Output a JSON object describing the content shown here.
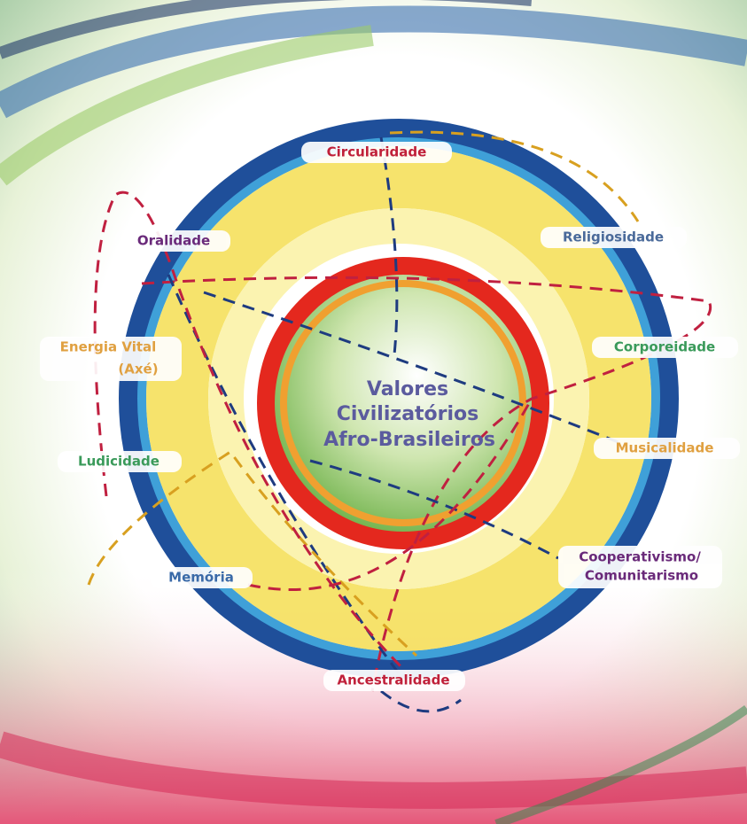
{
  "center": {
    "lines": [
      "Valores",
      "Civilizatórios",
      "Afro-Brasileiros"
    ]
  },
  "nodes": [
    {
      "lines": [
        "Circularidade"
      ]
    },
    {
      "lines": [
        "Religiosidade"
      ]
    },
    {
      "lines": [
        "Corporeidade"
      ]
    },
    {
      "lines": [
        "Musicalidade"
      ]
    },
    {
      "lines": [
        "Cooperativismo/",
        "Comunitarismo"
      ]
    },
    {
      "lines": [
        "Ancestralidade"
      ]
    },
    {
      "lines": [
        "Memória"
      ]
    },
    {
      "lines": [
        "Ludicidade"
      ]
    },
    {
      "lines": [
        "Energia Vital",
        "(Axé)"
      ]
    },
    {
      "lines": [
        "Oralidade"
      ]
    }
  ]
}
